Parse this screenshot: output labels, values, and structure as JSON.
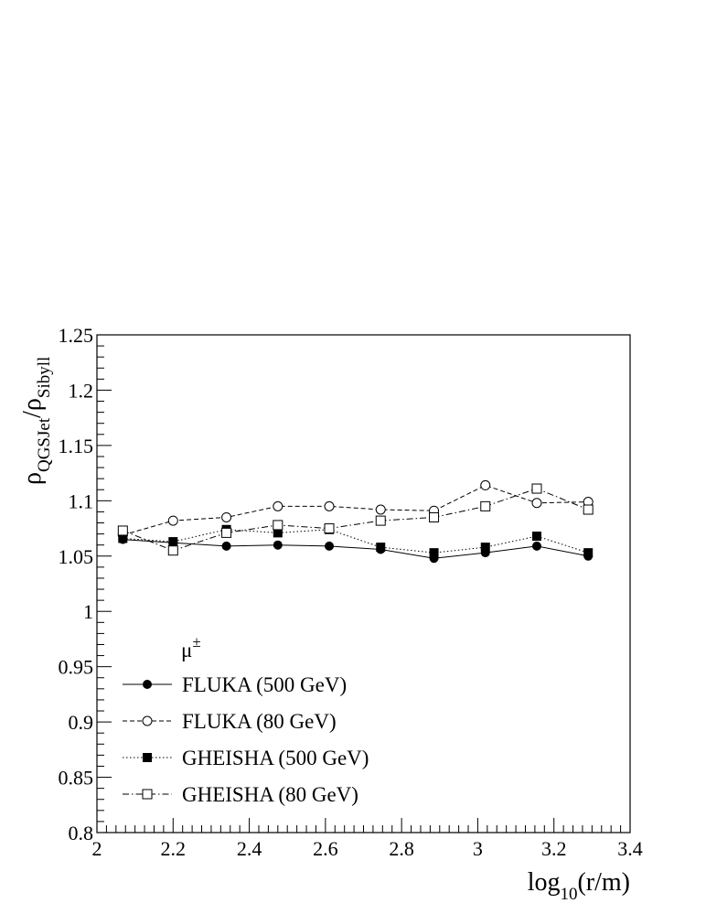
{
  "chart_data": {
    "type": "line",
    "xlabel": {
      "main": "log",
      "sub": "10",
      "rest": "(r/m)"
    },
    "ylabel": {
      "rho1": "ρ",
      "sub1": "QGSJet",
      "slash": "/",
      "rho2": "ρ",
      "sub2": "Sibyll"
    },
    "xlim": [
      2,
      3.4
    ],
    "ylim": [
      0.8,
      1.25
    ],
    "x_ticks": [
      2,
      2.2,
      2.4,
      2.6,
      2.8,
      3,
      3.2,
      3.4
    ],
    "x_tick_labels": [
      "2",
      "2.2",
      "2.4",
      "2.6",
      "2.8",
      "3",
      "3.2",
      "3.4"
    ],
    "y_ticks": [
      0.8,
      0.85,
      0.9,
      0.95,
      1,
      1.05,
      1.1,
      1.15,
      1.2,
      1.25
    ],
    "y_tick_labels": [
      "0.8",
      "0.85",
      "0.9",
      "0.95",
      "1",
      "1.05",
      "1.1",
      "1.15",
      "1.2",
      "1.25"
    ],
    "legend": {
      "title": "μ±",
      "position": "bottom-left"
    },
    "x": [
      2.068,
      2.2,
      2.34,
      2.475,
      2.61,
      2.745,
      2.885,
      3.02,
      3.155,
      3.29
    ],
    "series": [
      {
        "name": "FLUKA (500 GeV)",
        "marker": "filled-circle",
        "line": "solid",
        "values": [
          1.065,
          1.062,
          1.059,
          1.06,
          1.059,
          1.056,
          1.048,
          1.053,
          1.059,
          1.05
        ]
      },
      {
        "name": "FLUKA (80 GeV)",
        "marker": "open-circle",
        "line": "dashed",
        "values": [
          1.069,
          1.082,
          1.085,
          1.095,
          1.095,
          1.092,
          1.091,
          1.114,
          1.098,
          1.099
        ]
      },
      {
        "name": "GHEISHA (500 GeV)",
        "marker": "filled-square",
        "line": "dotted",
        "values": [
          1.066,
          1.063,
          1.074,
          1.071,
          1.074,
          1.058,
          1.053,
          1.058,
          1.068,
          1.053
        ]
      },
      {
        "name": "GHEISHA (80 GeV)",
        "marker": "open-square",
        "line": "dash-dot",
        "values": [
          1.073,
          1.055,
          1.071,
          1.078,
          1.075,
          1.082,
          1.085,
          1.095,
          1.111,
          1.092
        ]
      }
    ]
  }
}
